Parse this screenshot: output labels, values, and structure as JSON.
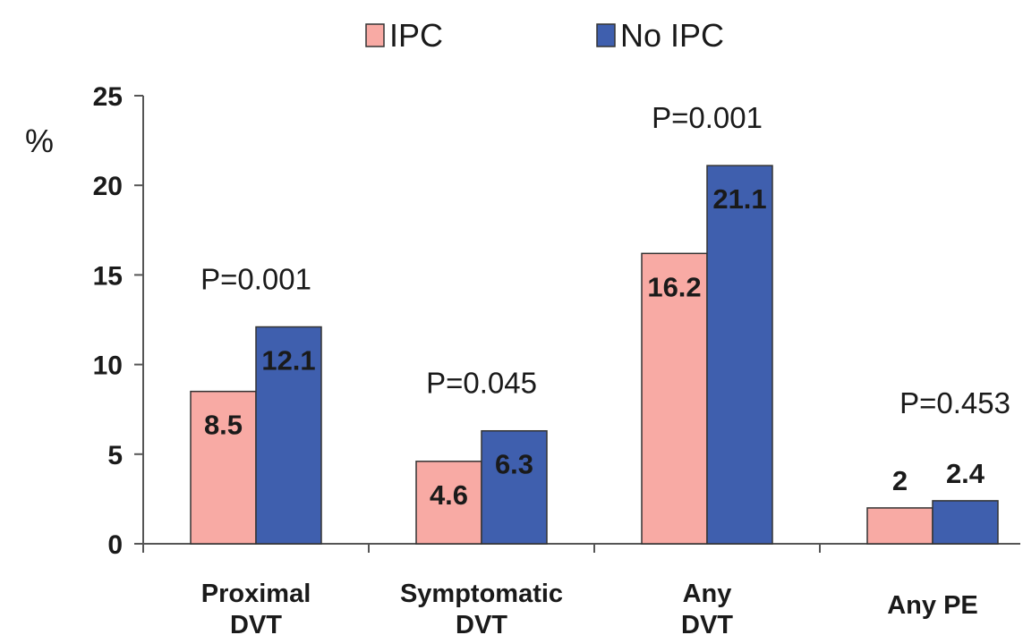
{
  "chart_data": {
    "type": "bar",
    "ylabel": "%",
    "ylim": [
      0,
      25
    ],
    "yticks": [
      0,
      5,
      10,
      15,
      20,
      25
    ],
    "grid": false,
    "legend_position": "top-center",
    "categories": [
      [
        "Proximal",
        "DVT"
      ],
      [
        "Symptomatic",
        "DVT"
      ],
      [
        "Any",
        "DVT"
      ],
      [
        "Any PE"
      ]
    ],
    "series": [
      {
        "name": "IPC",
        "color": "#f8aaa4",
        "values": [
          8.5,
          4.6,
          16.2,
          2
        ]
      },
      {
        "name": "No IPC",
        "color": "#3f5fae",
        "values": [
          12.1,
          6.3,
          21.1,
          2.4
        ]
      }
    ],
    "annotations": [
      "P=0.001",
      "P=0.045",
      "P=0.001",
      "P=0.453"
    ]
  }
}
